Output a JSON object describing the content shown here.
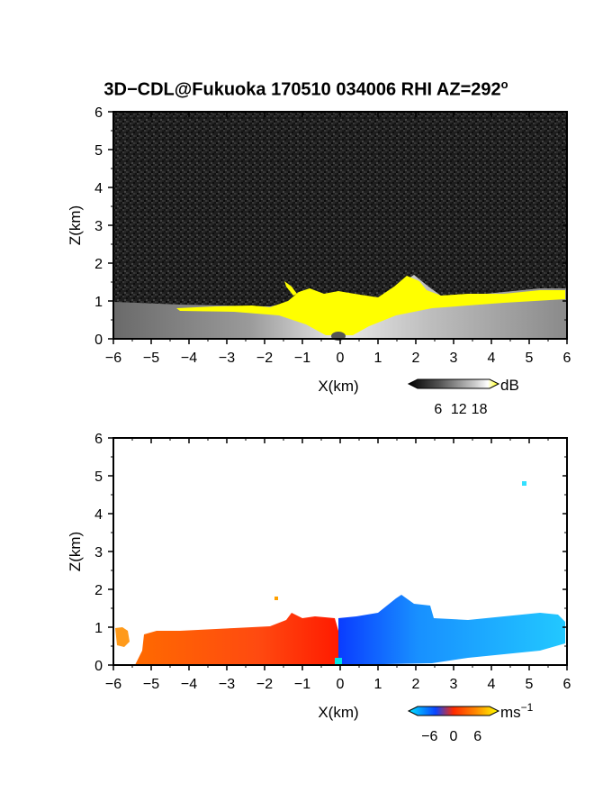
{
  "page": {
    "title": "3D−CDL@Fukuoka 170510 034006 RHI AZ=292",
    "title_sup": "o"
  },
  "colors": {
    "background": "#ffffff",
    "snr_noise": "#1f1f1f",
    "snr_signal": "#ffff00",
    "doppler_negative": "#0a44ff",
    "doppler_zero": "#ff2a00",
    "doppler_positive": "#ffa000"
  },
  "chart_data": [
    {
      "type": "heatmap",
      "title": "",
      "xlabel": "X(km)",
      "ylabel": "Z(km)",
      "xlim": [
        -6,
        6
      ],
      "ylim": [
        0,
        6
      ],
      "x_ticks": [
        "-6",
        "-5",
        "-4",
        "-3",
        "-2",
        "-1",
        "0",
        "1",
        "2",
        "3",
        "4",
        "5",
        "6"
      ],
      "y_ticks": [
        "0",
        "1",
        "2",
        "3",
        "4",
        "5",
        "6"
      ],
      "colorbar": {
        "unit": "dB",
        "ticks": [
          "6",
          "12",
          "18"
        ],
        "range": [
          0,
          21
        ],
        "colormap": "gray-to-yellow"
      },
      "grid": false,
      "echo_top_km": [
        {
          "x": -6.0,
          "z": 0.95
        },
        {
          "x": -5.0,
          "z": 0.85
        },
        {
          "x": -4.0,
          "z": 0.85
        },
        {
          "x": -3.0,
          "z": 0.9
        },
        {
          "x": -2.0,
          "z": 0.95
        },
        {
          "x": -1.5,
          "z": 1.05
        },
        {
          "x": -1.0,
          "z": 1.3
        },
        {
          "x": 0.0,
          "z": 1.15
        },
        {
          "x": 1.0,
          "z": 1.3
        },
        {
          "x": 1.6,
          "z": 1.6
        },
        {
          "x": 2.0,
          "z": 1.35
        },
        {
          "x": 3.0,
          "z": 1.1
        },
        {
          "x": 4.0,
          "z": 1.15
        },
        {
          "x": 5.0,
          "z": 1.25
        },
        {
          "x": 6.0,
          "z": 1.2
        }
      ]
    },
    {
      "type": "heatmap",
      "title": "",
      "xlabel": "X(km)",
      "ylabel": "Z(km)",
      "xlim": [
        -6,
        6
      ],
      "ylim": [
        0,
        6
      ],
      "x_ticks": [
        "-6",
        "-5",
        "-4",
        "-3",
        "-2",
        "-1",
        "0",
        "1",
        "2",
        "3",
        "4",
        "5",
        "6"
      ],
      "y_ticks": [
        "0",
        "1",
        "2",
        "3",
        "4",
        "5",
        "6"
      ],
      "colorbar": {
        "unit": "ms",
        "unit_sup": "−1",
        "ticks": [
          "−6",
          "0",
          "6"
        ],
        "range": [
          -9,
          9
        ],
        "colormap": "cyan-blue-red-yellow"
      },
      "grid": false,
      "echo_top_km": [
        {
          "x": -6.0,
          "z": 0.95
        },
        {
          "x": -5.0,
          "z": 0.85
        },
        {
          "x": -4.0,
          "z": 0.9
        },
        {
          "x": -3.0,
          "z": 0.95
        },
        {
          "x": -2.0,
          "z": 1.0
        },
        {
          "x": -1.0,
          "z": 1.3
        },
        {
          "x": 0.0,
          "z": 1.2
        },
        {
          "x": 1.0,
          "z": 1.4
        },
        {
          "x": 1.6,
          "z": 1.75
        },
        {
          "x": 2.0,
          "z": 1.3
        },
        {
          "x": 3.0,
          "z": 1.15
        },
        {
          "x": 4.0,
          "z": 1.2
        },
        {
          "x": 5.0,
          "z": 1.3
        },
        {
          "x": 6.0,
          "z": 1.2
        }
      ],
      "velocity_sign": [
        {
          "x_from": -6.0,
          "x_to": 0.0,
          "sign": "positive (red/orange)"
        },
        {
          "x_from": 0.0,
          "x_to": 6.0,
          "sign": "negative (blue/cyan)"
        }
      ]
    }
  ]
}
